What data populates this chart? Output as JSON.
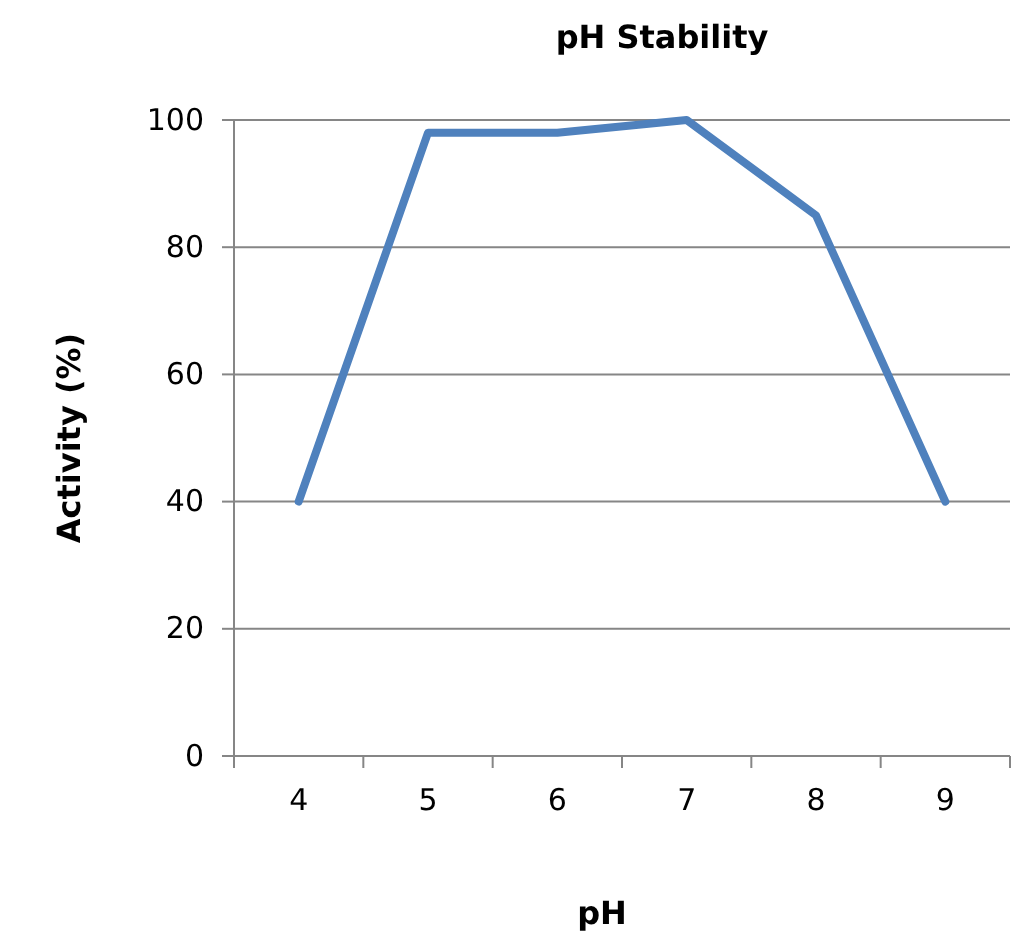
{
  "chart_data": {
    "type": "line",
    "title": "pH Stability",
    "xlabel": "pH",
    "ylabel": "Activity (%)",
    "categories": [
      "4",
      "5",
      "6",
      "7",
      "8",
      "9"
    ],
    "series": [
      {
        "color": "#4f81bd",
        "values": [
          40,
          98,
          98,
          100,
          85,
          40
        ]
      }
    ],
    "ylim": [
      0,
      100
    ],
    "yticks": [
      0,
      20,
      40,
      60,
      80,
      100
    ],
    "grid": "y",
    "marker": "none",
    "line_style": "solid"
  }
}
